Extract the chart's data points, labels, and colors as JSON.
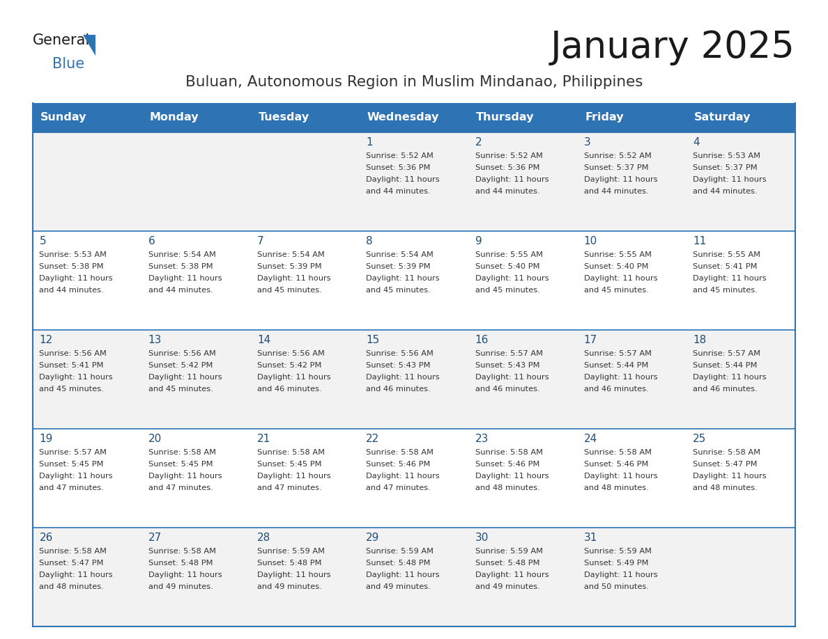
{
  "title": "January 2025",
  "subtitle": "Buluan, Autonomous Region in Muslim Mindanao, Philippines",
  "days_of_week": [
    "Sunday",
    "Monday",
    "Tuesday",
    "Wednesday",
    "Thursday",
    "Friday",
    "Saturday"
  ],
  "header_bg": "#2E74B5",
  "header_text": "#FFFFFF",
  "row_bg_odd": "#F2F2F2",
  "row_bg_even": "#FFFFFF",
  "cell_text_color": "#333333",
  "day_number_color": "#1F4E79",
  "title_color": "#1a1a1a",
  "subtitle_color": "#333333",
  "border_color": "#2E74B5",
  "calendar_data": [
    {
      "day": 1,
      "col": 3,
      "row": 0,
      "sunrise": "5:52 AM",
      "sunset": "5:36 PM",
      "daylight_hours": 11,
      "daylight_minutes": 44
    },
    {
      "day": 2,
      "col": 4,
      "row": 0,
      "sunrise": "5:52 AM",
      "sunset": "5:36 PM",
      "daylight_hours": 11,
      "daylight_minutes": 44
    },
    {
      "day": 3,
      "col": 5,
      "row": 0,
      "sunrise": "5:52 AM",
      "sunset": "5:37 PM",
      "daylight_hours": 11,
      "daylight_minutes": 44
    },
    {
      "day": 4,
      "col": 6,
      "row": 0,
      "sunrise": "5:53 AM",
      "sunset": "5:37 PM",
      "daylight_hours": 11,
      "daylight_minutes": 44
    },
    {
      "day": 5,
      "col": 0,
      "row": 1,
      "sunrise": "5:53 AM",
      "sunset": "5:38 PM",
      "daylight_hours": 11,
      "daylight_minutes": 44
    },
    {
      "day": 6,
      "col": 1,
      "row": 1,
      "sunrise": "5:54 AM",
      "sunset": "5:38 PM",
      "daylight_hours": 11,
      "daylight_minutes": 44
    },
    {
      "day": 7,
      "col": 2,
      "row": 1,
      "sunrise": "5:54 AM",
      "sunset": "5:39 PM",
      "daylight_hours": 11,
      "daylight_minutes": 45
    },
    {
      "day": 8,
      "col": 3,
      "row": 1,
      "sunrise": "5:54 AM",
      "sunset": "5:39 PM",
      "daylight_hours": 11,
      "daylight_minutes": 45
    },
    {
      "day": 9,
      "col": 4,
      "row": 1,
      "sunrise": "5:55 AM",
      "sunset": "5:40 PM",
      "daylight_hours": 11,
      "daylight_minutes": 45
    },
    {
      "day": 10,
      "col": 5,
      "row": 1,
      "sunrise": "5:55 AM",
      "sunset": "5:40 PM",
      "daylight_hours": 11,
      "daylight_minutes": 45
    },
    {
      "day": 11,
      "col": 6,
      "row": 1,
      "sunrise": "5:55 AM",
      "sunset": "5:41 PM",
      "daylight_hours": 11,
      "daylight_minutes": 45
    },
    {
      "day": 12,
      "col": 0,
      "row": 2,
      "sunrise": "5:56 AM",
      "sunset": "5:41 PM",
      "daylight_hours": 11,
      "daylight_minutes": 45
    },
    {
      "day": 13,
      "col": 1,
      "row": 2,
      "sunrise": "5:56 AM",
      "sunset": "5:42 PM",
      "daylight_hours": 11,
      "daylight_minutes": 45
    },
    {
      "day": 14,
      "col": 2,
      "row": 2,
      "sunrise": "5:56 AM",
      "sunset": "5:42 PM",
      "daylight_hours": 11,
      "daylight_minutes": 46
    },
    {
      "day": 15,
      "col": 3,
      "row": 2,
      "sunrise": "5:56 AM",
      "sunset": "5:43 PM",
      "daylight_hours": 11,
      "daylight_minutes": 46
    },
    {
      "day": 16,
      "col": 4,
      "row": 2,
      "sunrise": "5:57 AM",
      "sunset": "5:43 PM",
      "daylight_hours": 11,
      "daylight_minutes": 46
    },
    {
      "day": 17,
      "col": 5,
      "row": 2,
      "sunrise": "5:57 AM",
      "sunset": "5:44 PM",
      "daylight_hours": 11,
      "daylight_minutes": 46
    },
    {
      "day": 18,
      "col": 6,
      "row": 2,
      "sunrise": "5:57 AM",
      "sunset": "5:44 PM",
      "daylight_hours": 11,
      "daylight_minutes": 46
    },
    {
      "day": 19,
      "col": 0,
      "row": 3,
      "sunrise": "5:57 AM",
      "sunset": "5:45 PM",
      "daylight_hours": 11,
      "daylight_minutes": 47
    },
    {
      "day": 20,
      "col": 1,
      "row": 3,
      "sunrise": "5:58 AM",
      "sunset": "5:45 PM",
      "daylight_hours": 11,
      "daylight_minutes": 47
    },
    {
      "day": 21,
      "col": 2,
      "row": 3,
      "sunrise": "5:58 AM",
      "sunset": "5:45 PM",
      "daylight_hours": 11,
      "daylight_minutes": 47
    },
    {
      "day": 22,
      "col": 3,
      "row": 3,
      "sunrise": "5:58 AM",
      "sunset": "5:46 PM",
      "daylight_hours": 11,
      "daylight_minutes": 47
    },
    {
      "day": 23,
      "col": 4,
      "row": 3,
      "sunrise": "5:58 AM",
      "sunset": "5:46 PM",
      "daylight_hours": 11,
      "daylight_minutes": 48
    },
    {
      "day": 24,
      "col": 5,
      "row": 3,
      "sunrise": "5:58 AM",
      "sunset": "5:46 PM",
      "daylight_hours": 11,
      "daylight_minutes": 48
    },
    {
      "day": 25,
      "col": 6,
      "row": 3,
      "sunrise": "5:58 AM",
      "sunset": "5:47 PM",
      "daylight_hours": 11,
      "daylight_minutes": 48
    },
    {
      "day": 26,
      "col": 0,
      "row": 4,
      "sunrise": "5:58 AM",
      "sunset": "5:47 PM",
      "daylight_hours": 11,
      "daylight_minutes": 48
    },
    {
      "day": 27,
      "col": 1,
      "row": 4,
      "sunrise": "5:58 AM",
      "sunset": "5:48 PM",
      "daylight_hours": 11,
      "daylight_minutes": 49
    },
    {
      "day": 28,
      "col": 2,
      "row": 4,
      "sunrise": "5:59 AM",
      "sunset": "5:48 PM",
      "daylight_hours": 11,
      "daylight_minutes": 49
    },
    {
      "day": 29,
      "col": 3,
      "row": 4,
      "sunrise": "5:59 AM",
      "sunset": "5:48 PM",
      "daylight_hours": 11,
      "daylight_minutes": 49
    },
    {
      "day": 30,
      "col": 4,
      "row": 4,
      "sunrise": "5:59 AM",
      "sunset": "5:48 PM",
      "daylight_hours": 11,
      "daylight_minutes": 49
    },
    {
      "day": 31,
      "col": 5,
      "row": 4,
      "sunrise": "5:59 AM",
      "sunset": "5:49 PM",
      "daylight_hours": 11,
      "daylight_minutes": 50
    }
  ],
  "num_rows": 5,
  "num_cols": 7
}
